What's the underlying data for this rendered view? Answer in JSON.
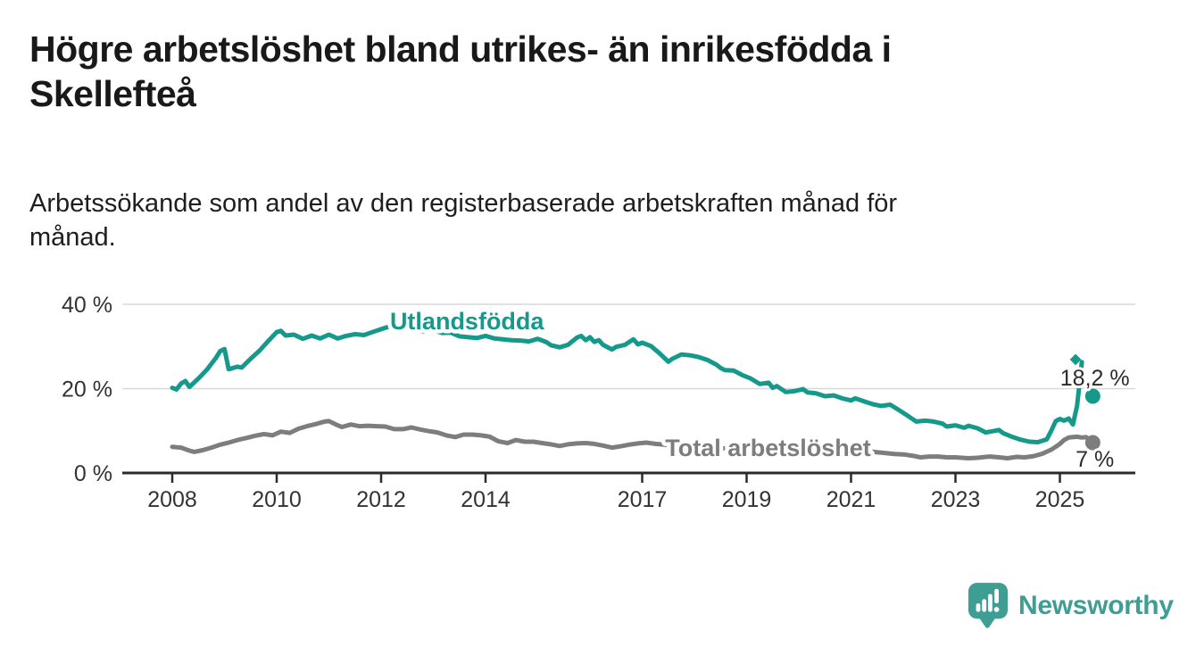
{
  "header": {
    "title": "Högre arbetslöshet bland utrikes- än inrikesfödda i\nSkellefteå",
    "subtitle": "Arbetssökande som andel av den registerbaserade arbetskraften månad för\nmånad."
  },
  "branding": {
    "logo_text": "Newsworthy",
    "logo_color": "#3f9e94",
    "logo_icon": "bar-chart-speech-bubble-icon"
  },
  "colors": {
    "background": "#ffffff",
    "axis": "#2b2b2b",
    "gridline": "#d8d8d8",
    "tick_label": "#333333",
    "annotation": "#2b2b2b",
    "series_foreign_born": "#14998b",
    "series_total": "#7d7d7d"
  },
  "chart_data": {
    "type": "line",
    "title": "Högre arbetslöshet bland utrikes- än inrikesfödda i Skellefteå",
    "subtitle": "Arbetssökande som andel av den registerbaserade arbetskraften månad för månad.",
    "unit": "%",
    "grid": "horizontal-only",
    "legend_position": "inline-labels-on-lines",
    "xlim": [
      2007.05,
      2026.45
    ],
    "ylim": [
      0,
      42
    ],
    "x_axis": {
      "ticks": [
        {
          "value": 2008,
          "label": "2008"
        },
        {
          "value": 2010,
          "label": "2010"
        },
        {
          "value": 2012,
          "label": "2012"
        },
        {
          "value": 2014,
          "label": "2014"
        },
        {
          "value": 2017,
          "label": "2017"
        },
        {
          "value": 2019,
          "label": "2019"
        },
        {
          "value": 2021,
          "label": "2021"
        },
        {
          "value": 2023,
          "label": "2023"
        },
        {
          "value": 2025,
          "label": "2025"
        }
      ]
    },
    "y_axis": {
      "ticks": [
        {
          "value": 0,
          "label": "0 %"
        },
        {
          "value": 20,
          "label": "20 %"
        },
        {
          "value": 40,
          "label": "40 %"
        }
      ]
    },
    "series": [
      {
        "id": "utlandsfodda",
        "name": "Utlandsfödda",
        "color": "#14998b",
        "label_anchor": {
          "x": 2012.17,
          "pct": 34.1
        },
        "tip_marker": {
          "x": 2025.3,
          "pct": 26.9
        },
        "end_dot": {
          "x": 2025.63,
          "pct": 18.2,
          "label": "18,2 %",
          "label_x": 2025.67,
          "label_pct": 20.7
        },
        "points": [
          [
            2008.0,
            20.2
          ],
          [
            2008.08,
            19.8
          ],
          [
            2008.17,
            21.2
          ],
          [
            2008.25,
            21.8
          ],
          [
            2008.33,
            20.4
          ],
          [
            2008.5,
            22.4
          ],
          [
            2008.67,
            24.6
          ],
          [
            2008.83,
            27.2
          ],
          [
            2008.92,
            28.9
          ],
          [
            2009.0,
            29.4
          ],
          [
            2009.08,
            24.6
          ],
          [
            2009.25,
            25.2
          ],
          [
            2009.33,
            25.0
          ],
          [
            2009.5,
            27.1
          ],
          [
            2009.67,
            29.0
          ],
          [
            2009.83,
            31.2
          ],
          [
            2010.0,
            33.4
          ],
          [
            2010.08,
            33.7
          ],
          [
            2010.17,
            32.6
          ],
          [
            2010.33,
            32.8
          ],
          [
            2010.5,
            31.8
          ],
          [
            2010.67,
            32.6
          ],
          [
            2010.83,
            31.9
          ],
          [
            2011.0,
            32.8
          ],
          [
            2011.17,
            31.9
          ],
          [
            2011.33,
            32.5
          ],
          [
            2011.5,
            32.9
          ],
          [
            2011.67,
            32.7
          ],
          [
            2011.83,
            33.4
          ],
          [
            2012.0,
            34.1
          ],
          [
            2012.17,
            34.8
          ],
          [
            2012.33,
            35.5
          ],
          [
            2012.42,
            35.2
          ],
          [
            2012.5,
            34.5
          ],
          [
            2012.67,
            33.8
          ],
          [
            2012.83,
            33.6
          ],
          [
            2013.0,
            33.9
          ],
          [
            2013.17,
            33.2
          ],
          [
            2013.33,
            33.3
          ],
          [
            2013.5,
            32.4
          ],
          [
            2013.67,
            32.2
          ],
          [
            2013.83,
            32.0
          ],
          [
            2014.0,
            32.5
          ],
          [
            2014.17,
            31.9
          ],
          [
            2014.33,
            31.7
          ],
          [
            2014.5,
            31.5
          ],
          [
            2014.67,
            31.4
          ],
          [
            2014.83,
            31.2
          ],
          [
            2015.0,
            31.8
          ],
          [
            2015.17,
            31.0
          ],
          [
            2015.25,
            30.3
          ],
          [
            2015.42,
            29.8
          ],
          [
            2015.58,
            30.4
          ],
          [
            2015.75,
            32.1
          ],
          [
            2015.83,
            32.5
          ],
          [
            2015.92,
            31.5
          ],
          [
            2016.0,
            32.2
          ],
          [
            2016.08,
            31.1
          ],
          [
            2016.17,
            31.5
          ],
          [
            2016.25,
            30.4
          ],
          [
            2016.42,
            29.3
          ],
          [
            2016.5,
            29.9
          ],
          [
            2016.67,
            30.4
          ],
          [
            2016.83,
            31.7
          ],
          [
            2016.92,
            30.5
          ],
          [
            2017.0,
            30.9
          ],
          [
            2017.17,
            30.1
          ],
          [
            2017.33,
            28.4
          ],
          [
            2017.5,
            26.4
          ],
          [
            2017.58,
            27.1
          ],
          [
            2017.75,
            28.1
          ],
          [
            2017.92,
            27.9
          ],
          [
            2018.08,
            27.5
          ],
          [
            2018.25,
            26.8
          ],
          [
            2018.42,
            25.7
          ],
          [
            2018.5,
            24.9
          ],
          [
            2018.58,
            24.4
          ],
          [
            2018.75,
            24.3
          ],
          [
            2018.92,
            23.2
          ],
          [
            2019.08,
            22.4
          ],
          [
            2019.25,
            21.1
          ],
          [
            2019.42,
            21.4
          ],
          [
            2019.5,
            20.2
          ],
          [
            2019.58,
            20.6
          ],
          [
            2019.75,
            19.2
          ],
          [
            2019.92,
            19.4
          ],
          [
            2020.08,
            19.9
          ],
          [
            2020.17,
            19.1
          ],
          [
            2020.33,
            18.9
          ],
          [
            2020.5,
            18.2
          ],
          [
            2020.67,
            18.4
          ],
          [
            2020.83,
            17.7
          ],
          [
            2021.0,
            17.2
          ],
          [
            2021.08,
            17.7
          ],
          [
            2021.25,
            17.0
          ],
          [
            2021.42,
            16.3
          ],
          [
            2021.58,
            15.9
          ],
          [
            2021.75,
            16.2
          ],
          [
            2021.92,
            14.9
          ],
          [
            2022.08,
            13.6
          ],
          [
            2022.25,
            12.2
          ],
          [
            2022.42,
            12.4
          ],
          [
            2022.58,
            12.2
          ],
          [
            2022.75,
            11.7
          ],
          [
            2022.83,
            11.0
          ],
          [
            2023.0,
            11.3
          ],
          [
            2023.17,
            10.7
          ],
          [
            2023.25,
            11.2
          ],
          [
            2023.42,
            10.6
          ],
          [
            2023.58,
            9.6
          ],
          [
            2023.75,
            10.0
          ],
          [
            2023.83,
            10.2
          ],
          [
            2023.92,
            9.4
          ],
          [
            2024.08,
            8.6
          ],
          [
            2024.25,
            7.9
          ],
          [
            2024.42,
            7.4
          ],
          [
            2024.58,
            7.3
          ],
          [
            2024.75,
            8.0
          ],
          [
            2024.83,
            9.9
          ],
          [
            2024.92,
            12.3
          ],
          [
            2025.0,
            12.8
          ],
          [
            2025.08,
            12.4
          ],
          [
            2025.17,
            12.9
          ],
          [
            2025.25,
            11.5
          ],
          [
            2025.33,
            16.0
          ],
          [
            2025.42,
            26.3
          ]
        ]
      },
      {
        "id": "total",
        "name": "Total arbetslöshet",
        "color": "#7d7d7d",
        "label_anchor": {
          "x": 2017.44,
          "pct": 4.0
        },
        "end_dot": {
          "x": 2025.63,
          "pct": 7.2,
          "label": "7 %",
          "label_x": 2025.67,
          "label_pct": 1.5
        },
        "points": [
          [
            2008.0,
            6.2
          ],
          [
            2008.17,
            6.0
          ],
          [
            2008.33,
            5.3
          ],
          [
            2008.42,
            5.0
          ],
          [
            2008.58,
            5.4
          ],
          [
            2008.75,
            6.0
          ],
          [
            2008.92,
            6.7
          ],
          [
            2009.08,
            7.2
          ],
          [
            2009.25,
            7.8
          ],
          [
            2009.42,
            8.3
          ],
          [
            2009.58,
            8.8
          ],
          [
            2009.75,
            9.2
          ],
          [
            2009.83,
            9.1
          ],
          [
            2009.92,
            8.9
          ],
          [
            2010.08,
            9.8
          ],
          [
            2010.25,
            9.5
          ],
          [
            2010.42,
            10.5
          ],
          [
            2010.58,
            11.1
          ],
          [
            2010.75,
            11.6
          ],
          [
            2010.92,
            12.2
          ],
          [
            2011.0,
            12.3
          ],
          [
            2011.17,
            11.3
          ],
          [
            2011.25,
            10.9
          ],
          [
            2011.42,
            11.5
          ],
          [
            2011.58,
            11.1
          ],
          [
            2011.75,
            11.2
          ],
          [
            2011.92,
            11.1
          ],
          [
            2012.08,
            11.0
          ],
          [
            2012.25,
            10.4
          ],
          [
            2012.42,
            10.4
          ],
          [
            2012.58,
            10.8
          ],
          [
            2012.75,
            10.3
          ],
          [
            2012.92,
            9.9
          ],
          [
            2013.08,
            9.6
          ],
          [
            2013.25,
            8.9
          ],
          [
            2013.42,
            8.5
          ],
          [
            2013.58,
            9.1
          ],
          [
            2013.75,
            9.1
          ],
          [
            2013.92,
            8.9
          ],
          [
            2014.08,
            8.6
          ],
          [
            2014.25,
            7.5
          ],
          [
            2014.42,
            7.1
          ],
          [
            2014.58,
            7.8
          ],
          [
            2014.75,
            7.4
          ],
          [
            2014.92,
            7.4
          ],
          [
            2015.08,
            7.1
          ],
          [
            2015.25,
            6.8
          ],
          [
            2015.42,
            6.4
          ],
          [
            2015.58,
            6.8
          ],
          [
            2015.75,
            7.0
          ],
          [
            2015.92,
            7.1
          ],
          [
            2016.08,
            6.9
          ],
          [
            2016.25,
            6.5
          ],
          [
            2016.42,
            6.0
          ],
          [
            2016.58,
            6.3
          ],
          [
            2016.75,
            6.7
          ],
          [
            2016.92,
            7.0
          ],
          [
            2017.08,
            7.2
          ],
          [
            2017.25,
            6.9
          ],
          [
            2017.42,
            6.7
          ],
          [
            2017.58,
            6.5
          ],
          [
            2017.75,
            6.4
          ],
          [
            2017.92,
            6.3
          ],
          [
            2018.17,
            6.1
          ],
          [
            2018.42,
            5.9
          ],
          [
            2018.67,
            5.8
          ],
          [
            2018.92,
            5.6
          ],
          [
            2019.17,
            5.5
          ],
          [
            2019.42,
            5.4
          ],
          [
            2019.67,
            5.3
          ],
          [
            2019.92,
            5.3
          ],
          [
            2020.17,
            5.6
          ],
          [
            2020.42,
            5.9
          ],
          [
            2020.58,
            6.0
          ],
          [
            2020.83,
            5.7
          ],
          [
            2021.08,
            5.4
          ],
          [
            2021.33,
            5.1
          ],
          [
            2021.58,
            4.8
          ],
          [
            2021.83,
            4.5
          ],
          [
            2022.0,
            4.4
          ],
          [
            2022.17,
            4.1
          ],
          [
            2022.33,
            3.7
          ],
          [
            2022.5,
            3.9
          ],
          [
            2022.67,
            3.9
          ],
          [
            2022.83,
            3.7
          ],
          [
            2023.0,
            3.7
          ],
          [
            2023.25,
            3.5
          ],
          [
            2023.42,
            3.6
          ],
          [
            2023.58,
            3.8
          ],
          [
            2023.67,
            3.9
          ],
          [
            2023.83,
            3.7
          ],
          [
            2024.0,
            3.5
          ],
          [
            2024.17,
            3.8
          ],
          [
            2024.33,
            3.7
          ],
          [
            2024.5,
            4.0
          ],
          [
            2024.67,
            4.6
          ],
          [
            2024.83,
            5.5
          ],
          [
            2024.92,
            6.2
          ],
          [
            2025.0,
            6.9
          ],
          [
            2025.08,
            7.8
          ],
          [
            2025.17,
            8.4
          ],
          [
            2025.33,
            8.6
          ],
          [
            2025.42,
            8.4
          ],
          [
            2025.5,
            8.5
          ],
          [
            2025.55,
            7.9
          ]
        ]
      }
    ]
  }
}
